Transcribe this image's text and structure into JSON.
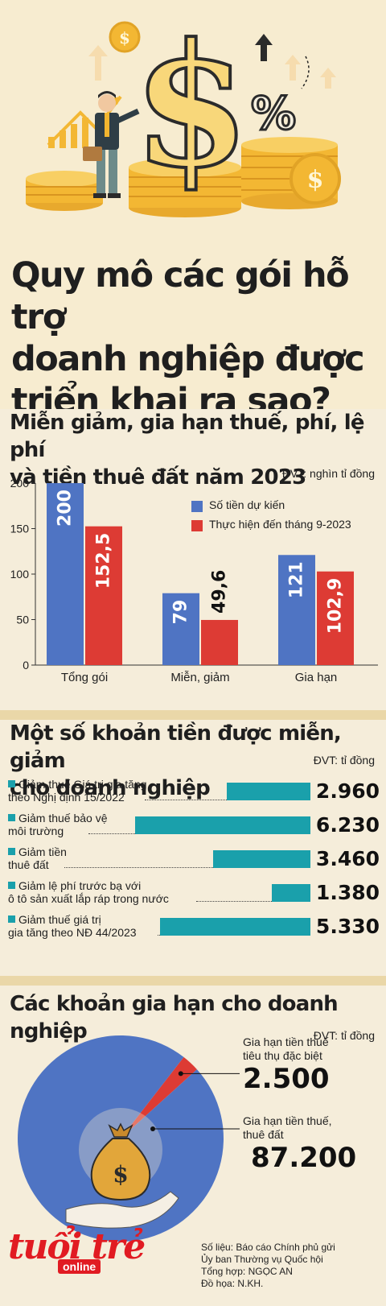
{
  "header": {
    "title_lines": [
      "Quy mô các gói hỗ trợ",
      "doanh nghiệp được",
      "triển khai ra sao?"
    ],
    "illustration": "man-with-dollar-sign-coins-illustration"
  },
  "section1": {
    "title_lines": [
      "Miễn giảm, gia hạn thuế, phí, lệ phí",
      "và tiền thuê đất năm 2023"
    ],
    "unit": "ĐVT: nghìn tỉ đồng"
  },
  "chart_data": [
    {
      "type": "bar",
      "title": "Miễn giảm, gia hạn thuế, phí, lệ phí và tiền thuê đất năm 2023",
      "unit": "ĐVT: nghìn tỉ đồng",
      "categories": [
        "Tổng gói",
        "Miễn, giảm",
        "Gia hạn"
      ],
      "series": [
        {
          "name": "Số tiền dự kiến",
          "values": [
            200,
            79,
            121
          ],
          "labels": [
            "200",
            "79",
            "121"
          ],
          "color": "#4f74c3"
        },
        {
          "name": "Thực hiện đến tháng 9-2023",
          "values": [
            152.5,
            49.6,
            102.9
          ],
          "labels": [
            "152,5",
            "49,6",
            "102,9"
          ],
          "color": "#dd3b34"
        }
      ],
      "ylim": [
        0,
        200
      ],
      "yticks": [
        0,
        50,
        100,
        150,
        200
      ],
      "legend": "top-right",
      "grid": false
    },
    {
      "type": "bar",
      "orientation": "horizontal",
      "title": "Một số khoản tiền được miễn, giảm cho doanh nghiệp",
      "unit": "ĐVT: tỉ đồng",
      "categories": [
        "Giảm thuế Giá trị gia tăng theo Nghị định 15/2022",
        "Giảm thuế bảo vệ môi trường",
        "Giảm tiền thuê đất",
        "Giảm lệ phí trước bạ với ô tô sản xuất lắp ráp trong nước",
        "Giảm thuế giá trị gia tăng theo NĐ 44/2023"
      ],
      "values": [
        2960,
        6230,
        3460,
        1380,
        5330
      ],
      "labels": [
        "2.960",
        "6.230",
        "3.460",
        "1.380",
        "5.330"
      ],
      "color": "#1aa0ab"
    },
    {
      "type": "pie",
      "title": "Các khoản gia hạn cho doanh nghiệp",
      "unit": "ĐVT: tỉ đồng",
      "categories": [
        "Gia hạn tiền thuế tiêu thụ đặc biệt",
        "Gia hạn tiền thuế, thuê đất"
      ],
      "values": [
        2500,
        87200
      ],
      "labels": [
        "2.500",
        "87.200"
      ],
      "colors": [
        "#dd3b34",
        "#4f74c3"
      ]
    }
  ],
  "section2": {
    "title_lines": [
      "Một số khoản tiền được miễn, giảm",
      "cho doanh nghiệp"
    ],
    "unit": "ĐVT: tỉ đồng",
    "rows": [
      {
        "line1": "Giảm thuế Giá trị gia tăng",
        "line2": "theo Nghị định 15/2022"
      },
      {
        "line1": "Giảm thuế bảo vệ",
        "line2": "môi trường"
      },
      {
        "line1": "Giảm tiền",
        "line2": "thuê đất"
      },
      {
        "line1": "Giảm lệ phí trước bạ với",
        "line2": "ô tô sản xuất lắp ráp trong nước"
      },
      {
        "line1": "Giảm thuế giá trị",
        "line2": "gia tăng theo NĐ 44/2023"
      }
    ]
  },
  "section3": {
    "title": "Các khoản gia hạn cho doanh nghiệp",
    "unit": "ĐVT: tỉ đồng",
    "item1_lines": [
      "Gia hạn tiền thuế",
      "tiêu thụ đặc biệt"
    ],
    "item1_value": "2.500",
    "item2_lines": [
      "Gia hạn tiền thuế,",
      "thuê đất"
    ],
    "item2_value": "87.200",
    "money_bag_symbol": "$"
  },
  "footer": {
    "logo_main": "tuổi trẻ",
    "logo_sub": "online",
    "credits": [
      "Số liệu: Báo cáo Chính phủ gửi",
      "Ủy ban Thường vụ Quốc hội",
      "Tổng hợp: NGỌC AN",
      "Đồ họa: N.KH."
    ]
  }
}
